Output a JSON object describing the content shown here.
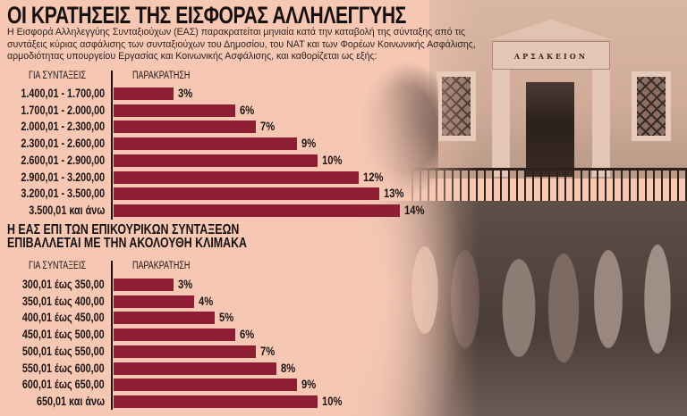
{
  "title": "ΟΙ ΚΡΑΤΗΣΕΙΣ ΤΗΣ ΕΙΣΦΟΡΑΣ ΑΛΛΗΛΕΓΓΥΗΣ",
  "intro": "Η Εισφορά Αλληλεγγύης Συνταξιούχων (ΕΑΣ) παρακρατείται μηνιαία κατά την καταβολή της σύνταξης από τις συντάξεις κύριας ασφάλισης των συνταξιούχων του Δημοσίου, του ΝΑΤ και των Φορέων Κοινωνικής Ασφάλισης, αρμοδιότητας υπουργείου Εργασίας και Κοινωνικής Ασφάλισης, και καθορίζεται ως εξής:",
  "photo": {
    "building_sign": "ΑΡΣΑΚΕΙΟΝ"
  },
  "colors": {
    "background": "#f6c8b4",
    "bar": "#8e1e33",
    "text": "#1c1414"
  },
  "chart_data": [
    {
      "type": "bar",
      "orientation": "horizontal",
      "title": "ΟΙ ΚΡΑΤΗΣΕΙΣ ΤΗΣ ΕΙΣΦΟΡΑΣ ΑΛΛΗΛΕΓΓΥΗΣ",
      "xlabel": "ΠΑΡΑΚΡΑΤΗΣΗ",
      "ylabel": "ΓΙΑ ΣΥΝΤΑΞΕΙΣ",
      "categories": [
        "1.400,01 - 1.700,00",
        "1.700,01 - 2.000,00",
        "2.000,01 - 2.300,00",
        "2.300,01 - 2.600,00",
        "2.600,01 - 2.900,00",
        "2.900,01 - 3.200,00",
        "3.200,01 - 3.500,00",
        "3.500,01 και άνω"
      ],
      "values": [
        3,
        6,
        7,
        9,
        10,
        12,
        13,
        14
      ],
      "value_labels": [
        "3%",
        "6%",
        "7%",
        "9%",
        "10%",
        "12%",
        "13%",
        "14%"
      ],
      "unit": "%",
      "grid": false,
      "legend": "none"
    },
    {
      "type": "bar",
      "orientation": "horizontal",
      "title": "Η ΕΑΣ ΕΠΙ ΤΩΝ ΕΠΙΚΟΥΡΙΚΩΝ ΣΥΝΤΑΞΕΩΝ ΕΠΙΒΑΛΛΕΤΑΙ ΜΕ ΤΗΝ ΑΚΟΛΟΥΘΗ ΚΛΙΜΑΚΑ",
      "xlabel": "ΠΑΡΑΚΡΑΤΗΣΗ",
      "ylabel": "ΓΙΑ ΣΥΝΤΑΞΕΙΣ",
      "categories": [
        "300,01 έως 350,00",
        "350,01 έως 400,00",
        "400,01 έως 450,00",
        "450,01 έως 500,00",
        "500,01 έως 550,00",
        "550,01 έως 600,00",
        "600,01 έως 650,00",
        "650,01 και άνω"
      ],
      "values": [
        3,
        4,
        5,
        6,
        7,
        8,
        9,
        10
      ],
      "value_labels": [
        "3%",
        "4%",
        "5%",
        "6%",
        "7%",
        "8%",
        "9%",
        "10%"
      ],
      "unit": "%",
      "grid": false,
      "legend": "none"
    }
  ],
  "chart1": {
    "col_left": "ΓΙΑ ΣΥΝΤΑΞΕΙΣ",
    "col_right": "ΠΑΡΑΚΡΑΤΗΣΗ",
    "rows": [
      {
        "label": "1.400,01 - 1.700,00",
        "pct": "3%"
      },
      {
        "label": "1.700,01 - 2.000,00",
        "pct": "6%"
      },
      {
        "label": "2.000,01 - 2.300,00",
        "pct": "7%"
      },
      {
        "label": "2.300,01 - 2.600,00",
        "pct": "9%"
      },
      {
        "label": "2.600,01 - 2.900,00",
        "pct": "10%"
      },
      {
        "label": "2.900,01 - 3.200,00",
        "pct": "12%"
      },
      {
        "label": "3.200,01 - 3.500,00",
        "pct": "13%"
      },
      {
        "label": "3.500,01 και άνω",
        "pct": "14%"
      }
    ]
  },
  "chart2": {
    "subtitle_line1": "Η ΕΑΣ ΕΠΙ ΤΩΝ ΕΠΙΚΟΥΡΙΚΩΝ ΣΥΝΤΑΞΕΩΝ",
    "subtitle_line2": "ΕΠΙΒΑΛΛΕΤΑΙ ΜΕ ΤΗΝ ΑΚΟΛΟΥΘΗ ΚΛΙΜΑΚΑ",
    "col_left": "ΓΙΑ ΣΥΝΤΑΞΕΙΣ",
    "col_right": "ΠΑΡΑΚΡΑΤΗΣΗ",
    "rows": [
      {
        "label": "300,01 έως 350,00",
        "pct": "3%"
      },
      {
        "label": "350,01 έως 400,00",
        "pct": "4%"
      },
      {
        "label": "400,01 έως 450,00",
        "pct": "5%"
      },
      {
        "label": "450,01 έως 500,00",
        "pct": "6%"
      },
      {
        "label": "500,01 έως 550,00",
        "pct": "7%"
      },
      {
        "label": "550,01 έως 600,00",
        "pct": "8%"
      },
      {
        "label": "600,01 έως 650,00",
        "pct": "9%"
      },
      {
        "label": "650,01 και άνω",
        "pct": "10%"
      }
    ]
  }
}
